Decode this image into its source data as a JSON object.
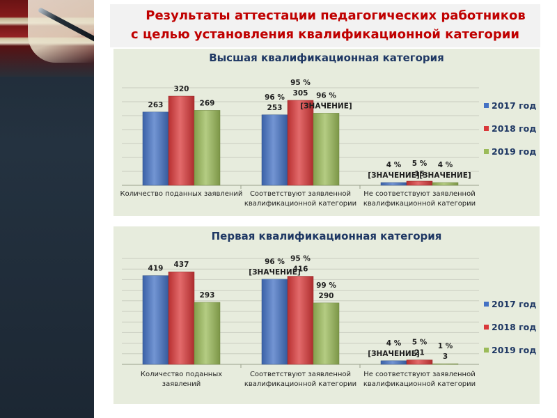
{
  "slide_title": {
    "line1": "Результаты аттестации педагогических работников",
    "line2": "с целью установления квалификационной  категории"
  },
  "colors": {
    "s2017": "#4472c4",
    "s2018": "#d9383a",
    "s2019": "#9bbb59",
    "title_red": "#c00000",
    "panel_bg": "#e7ecdd"
  },
  "chart_data": [
    {
      "type": "bar",
      "title": "Высшая квалификационная категория",
      "categories": [
        [
          "Количество поданных заявлений"
        ],
        [
          "Соответствуют заявленной",
          "квалификационной категории"
        ],
        [
          "Не соответствуют заявленной",
          "квалификационной категории"
        ]
      ],
      "series": [
        {
          "name": "2017 год",
          "values": [
            263,
            253,
            10
          ]
        },
        {
          "name": "2018 год",
          "values": [
            320,
            305,
            15
          ]
        },
        {
          "name": "2019 год",
          "values": [
            269,
            259,
            10
          ]
        }
      ],
      "data_labels": [
        [
          [
            "263"
          ],
          [
            "96 %",
            "253"
          ],
          [
            "4 %",
            "[ЗНАЧЕНИЕ]"
          ]
        ],
        [
          [
            "320"
          ],
          [
            "95 %",
            "305"
          ],
          [
            "5 %",
            "15"
          ]
        ],
        [
          [
            "269"
          ],
          [
            "96 %",
            "[ЗНАЧЕНИЕ]"
          ],
          [
            "4 %",
            "[ЗНАЧЕНИЕ]"
          ]
        ]
      ],
      "ylim": [
        0,
        350
      ],
      "grid": true,
      "legend": "right"
    },
    {
      "type": "bar",
      "title": "Первая квалификационная категория",
      "categories": [
        [
          "Количество поданных",
          "заявлений"
        ],
        [
          "Соответствуют заявленной",
          "квалификационной категории"
        ],
        [
          "Не соответствуют заявленной",
          "квалификационной категории"
        ]
      ],
      "series": [
        {
          "name": "2017 год",
          "values": [
            419,
            402,
            17
          ]
        },
        {
          "name": "2018 год",
          "values": [
            437,
            416,
            21
          ]
        },
        {
          "name": "2019 год",
          "values": [
            293,
            290,
            3
          ]
        }
      ],
      "data_labels": [
        [
          [
            "419"
          ],
          [
            "96 %",
            "[ЗНАЧЕНИЕ]"
          ],
          [
            "4 %",
            "[ЗНАЧЕНИЕ]"
          ]
        ],
        [
          [
            "437"
          ],
          [
            "95 %",
            "416"
          ],
          [
            "5 %",
            "21"
          ]
        ],
        [
          [
            "293"
          ],
          [
            "99 %",
            "290"
          ],
          [
            "1 %",
            "3"
          ]
        ]
      ],
      "ylim": [
        0,
        500
      ],
      "grid": true,
      "legend": "right"
    }
  ]
}
